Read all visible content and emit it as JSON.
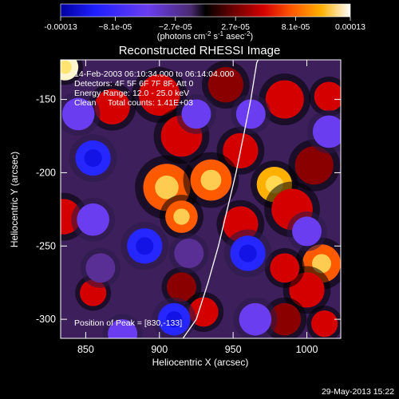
{
  "chart_data": {
    "type": "heatmap",
    "title": "Reconstructed RHESSI Image",
    "xlabel": "Heliocentric X (arcsec)",
    "ylabel": "Heliocentric Y (arcsec)",
    "xlim": [
      833,
      1023
    ],
    "ylim": [
      -313,
      -123
    ],
    "x_ticks": [
      850,
      900,
      950,
      1000
    ],
    "y_ticks": [
      -150,
      -200,
      -250,
      -300
    ],
    "colorbar": {
      "min": -0.00013,
      "max": 0.00013,
      "tick_values": [
        -0.00013,
        -8.1e-05,
        -2.7e-05,
        2.7e-05,
        8.1e-05,
        0.00013
      ],
      "tick_labels": [
        "-0.00013",
        "−8.1e-05",
        "−2.7e-05",
        "2.7e-05",
        "8.1e-05",
        "0.00013"
      ],
      "units_text": "(photons cm",
      "units_sup1": "-2",
      "units_mid": " s",
      "units_sup2": "-1",
      "units_end": " asec",
      "units_sup3": "-2",
      "units_close": ")"
    },
    "annotations": [
      "14-Feb-2003 06:10:34.000 to 06:14:04.000",
      "Detectors: 4F 5F 6F 7F 8F, Att 0",
      "Energy Range: 12.0 - 25.0 keV",
      "Clean     Total counts: 1.41E+03"
    ],
    "peak_label": "Position of Peak = [830,-133]",
    "limb_points": [
      [
        916,
        -313
      ],
      [
        925,
        -300
      ],
      [
        933,
        -275
      ],
      [
        940,
        -250
      ],
      [
        946,
        -225
      ],
      [
        952,
        -200
      ],
      [
        957,
        -175
      ],
      [
        962,
        -150
      ],
      [
        966,
        -125
      ],
      [
        967,
        -123
      ]
    ],
    "blobs": [
      {
        "x": 836,
        "y": -128,
        "value": 0.00012,
        "r": 9
      },
      {
        "x": 868,
        "y": -155,
        "value": 5e-05,
        "r": 12
      },
      {
        "x": 900,
        "y": -147,
        "value": 6e-05,
        "r": 14
      },
      {
        "x": 945,
        "y": -140,
        "value": 4e-05,
        "r": 12
      },
      {
        "x": 985,
        "y": -150,
        "value": 5e-05,
        "r": 13
      },
      {
        "x": 1015,
        "y": -148,
        "value": 6e-05,
        "r": 10
      },
      {
        "x": 915,
        "y": -175,
        "value": 7e-05,
        "r": 14
      },
      {
        "x": 955,
        "y": -185,
        "value": 5e-05,
        "r": 12
      },
      {
        "x": 1005,
        "y": -195,
        "value": 4e-05,
        "r": 13
      },
      {
        "x": 835,
        "y": -230,
        "value": 5e-05,
        "r": 12
      },
      {
        "x": 905,
        "y": -210,
        "value": 8e-05,
        "r": 16
      },
      {
        "x": 935,
        "y": -205,
        "value": 8e-05,
        "r": 14
      },
      {
        "x": 915,
        "y": -230,
        "value": 9e-05,
        "r": 11
      },
      {
        "x": 978,
        "y": -208,
        "value": 0.0001,
        "r": 12
      },
      {
        "x": 990,
        "y": -225,
        "value": 6e-05,
        "r": 14
      },
      {
        "x": 955,
        "y": -235,
        "value": 7e-05,
        "r": 12
      },
      {
        "x": 1010,
        "y": -262,
        "value": 9e-05,
        "r": 13
      },
      {
        "x": 1000,
        "y": -280,
        "value": 7e-05,
        "r": 12
      },
      {
        "x": 985,
        "y": -265,
        "value": 5e-05,
        "r": 10
      },
      {
        "x": 855,
        "y": -282,
        "value": 6e-05,
        "r": 9
      },
      {
        "x": 915,
        "y": -278,
        "value": 4e-05,
        "r": 10
      },
      {
        "x": 930,
        "y": -295,
        "value": 6e-05,
        "r": 10
      },
      {
        "x": 985,
        "y": -300,
        "value": 4e-05,
        "r": 11
      },
      {
        "x": 1012,
        "y": -303,
        "value": 5e-05,
        "r": 9
      },
      {
        "x": 855,
        "y": -190,
        "value": -8e-05,
        "r": 12
      },
      {
        "x": 845,
        "y": -160,
        "value": -7e-05,
        "r": 11
      },
      {
        "x": 855,
        "y": -232,
        "value": -7e-05,
        "r": 11
      },
      {
        "x": 890,
        "y": -250,
        "value": -8e-05,
        "r": 12
      },
      {
        "x": 875,
        "y": -310,
        "value": -6e-05,
        "r": 10
      },
      {
        "x": 925,
        "y": -160,
        "value": -6e-05,
        "r": 10
      },
      {
        "x": 962,
        "y": -160,
        "value": -6e-05,
        "r": 10
      },
      {
        "x": 1015,
        "y": -172,
        "value": -7e-05,
        "r": 11
      },
      {
        "x": 1000,
        "y": -240,
        "value": -5e-05,
        "r": 10
      },
      {
        "x": 960,
        "y": -255,
        "value": -8e-05,
        "r": 12
      },
      {
        "x": 965,
        "y": -300,
        "value": -6e-05,
        "r": 11
      },
      {
        "x": 920,
        "y": -255,
        "value": -3e-05,
        "r": 10
      },
      {
        "x": 910,
        "y": -300,
        "value": -8e-05,
        "r": 11
      },
      {
        "x": 860,
        "y": -265,
        "value": -4e-05,
        "r": 10
      }
    ]
  },
  "footer": {
    "date": "29-May-2013 15:22"
  }
}
